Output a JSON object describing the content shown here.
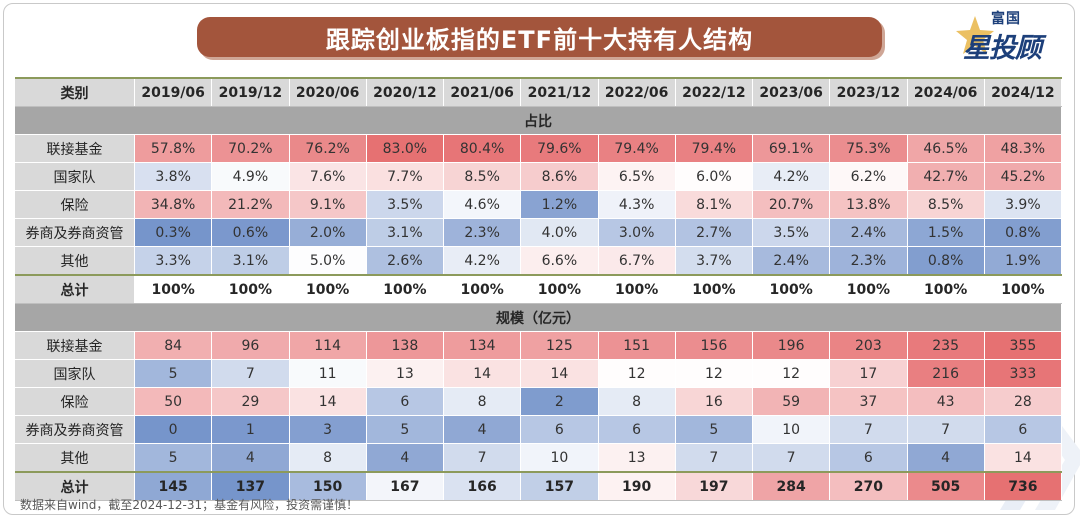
{
  "title": "跟踪创业板指的ETF前十大持有人结构",
  "logo": {
    "line1": "富国",
    "line2": "星投顾"
  },
  "footnote": "数据来自wind，截至2024-12-31；基金有风险，投资需谨慎！",
  "colors": {
    "high": "#e5696b",
    "mid": "#ffffff",
    "low": "#6f8fc8"
  },
  "chart_data": {
    "type": "table",
    "title": "跟踪创业板指的ETF前十大持有人结构",
    "header_label": "类别",
    "columns": [
      "2019/06",
      "2019/12",
      "2020/06",
      "2020/12",
      "2021/06",
      "2021/12",
      "2022/06",
      "2022/12",
      "2023/06",
      "2023/12",
      "2024/06",
      "2024/12"
    ],
    "sections": [
      {
        "name": "占比",
        "rows": [
          {
            "label": "联接基金",
            "values": [
              "57.8%",
              "70.2%",
              "76.2%",
              "83.0%",
              "80.4%",
              "79.6%",
              "79.4%",
              "79.4%",
              "69.1%",
              "75.3%",
              "46.5%",
              "48.3%"
            ],
            "numbers": [
              57.8,
              70.2,
              76.2,
              83.0,
              80.4,
              79.6,
              79.4,
              79.4,
              69.1,
              75.3,
              46.5,
              48.3
            ]
          },
          {
            "label": "国家队",
            "values": [
              "3.8%",
              "4.9%",
              "7.6%",
              "7.7%",
              "8.5%",
              "8.6%",
              "6.5%",
              "6.0%",
              "4.2%",
              "6.2%",
              "42.7%",
              "45.2%"
            ],
            "numbers": [
              3.8,
              4.9,
              7.6,
              7.7,
              8.5,
              8.6,
              6.5,
              6.0,
              4.2,
              6.2,
              42.7,
              45.2
            ]
          },
          {
            "label": "保险",
            "values": [
              "34.8%",
              "21.2%",
              "9.1%",
              "3.5%",
              "4.6%",
              "1.2%",
              "4.3%",
              "8.1%",
              "20.7%",
              "13.8%",
              "8.5%",
              "3.9%"
            ],
            "numbers": [
              34.8,
              21.2,
              9.1,
              3.5,
              4.6,
              1.2,
              4.3,
              8.1,
              20.7,
              13.8,
              8.5,
              3.9
            ]
          },
          {
            "label": "券商及券商资管",
            "values": [
              "0.3%",
              "0.6%",
              "2.0%",
              "3.1%",
              "2.3%",
              "4.0%",
              "3.0%",
              "2.7%",
              "3.5%",
              "2.4%",
              "1.5%",
              "0.8%"
            ],
            "numbers": [
              0.3,
              0.6,
              2.0,
              3.1,
              2.3,
              4.0,
              3.0,
              2.7,
              3.5,
              2.4,
              1.5,
              0.8
            ]
          },
          {
            "label": "其他",
            "values": [
              "3.3%",
              "3.1%",
              "5.0%",
              "2.6%",
              "4.2%",
              "6.6%",
              "6.7%",
              "3.7%",
              "2.4%",
              "2.3%",
              "0.8%",
              "1.9%"
            ],
            "numbers": [
              3.3,
              3.1,
              5.0,
              2.6,
              4.2,
              6.6,
              6.7,
              3.7,
              2.4,
              2.3,
              0.8,
              1.9
            ]
          }
        ],
        "total": {
          "label": "总计",
          "values": [
            "100%",
            "100%",
            "100%",
            "100%",
            "100%",
            "100%",
            "100%",
            "100%",
            "100%",
            "100%",
            "100%",
            "100%"
          ]
        }
      },
      {
        "name": "规模（亿元）",
        "rows": [
          {
            "label": "联接基金",
            "values": [
              "84",
              "96",
              "114",
              "138",
              "134",
              "125",
              "151",
              "156",
              "196",
              "203",
              "235",
              "355"
            ],
            "numbers": [
              84,
              96,
              114,
              138,
              134,
              125,
              151,
              156,
              196,
              203,
              235,
              355
            ]
          },
          {
            "label": "国家队",
            "values": [
              "5",
              "7",
              "11",
              "13",
              "14",
              "14",
              "12",
              "12",
              "12",
              "17",
              "216",
              "333"
            ],
            "numbers": [
              5,
              7,
              11,
              13,
              14,
              14,
              12,
              12,
              12,
              17,
              216,
              333
            ]
          },
          {
            "label": "保险",
            "values": [
              "50",
              "29",
              "14",
              "6",
              "8",
              "2",
              "8",
              "16",
              "59",
              "37",
              "43",
              "28"
            ],
            "numbers": [
              50,
              29,
              14,
              6,
              8,
              2,
              8,
              16,
              59,
              37,
              43,
              28
            ]
          },
          {
            "label": "券商及券商资管",
            "values": [
              "0",
              "1",
              "3",
              "5",
              "4",
              "6",
              "6",
              "5",
              "10",
              "7",
              "7",
              "6"
            ],
            "numbers": [
              0,
              1,
              3,
              5,
              4,
              6,
              6,
              5,
              10,
              7,
              7,
              6
            ]
          },
          {
            "label": "其他",
            "values": [
              "5",
              "4",
              "8",
              "4",
              "7",
              "10",
              "13",
              "7",
              "7",
              "6",
              "4",
              "14"
            ],
            "numbers": [
              5,
              4,
              8,
              4,
              7,
              10,
              13,
              7,
              7,
              6,
              4,
              14
            ]
          }
        ],
        "total": {
          "label": "总计",
          "values": [
            "145",
            "137",
            "150",
            "167",
            "166",
            "157",
            "190",
            "197",
            "284",
            "270",
            "505",
            "736"
          ],
          "numbers": [
            145,
            137,
            150,
            167,
            166,
            157,
            190,
            197,
            284,
            270,
            505,
            736
          ]
        }
      }
    ]
  }
}
